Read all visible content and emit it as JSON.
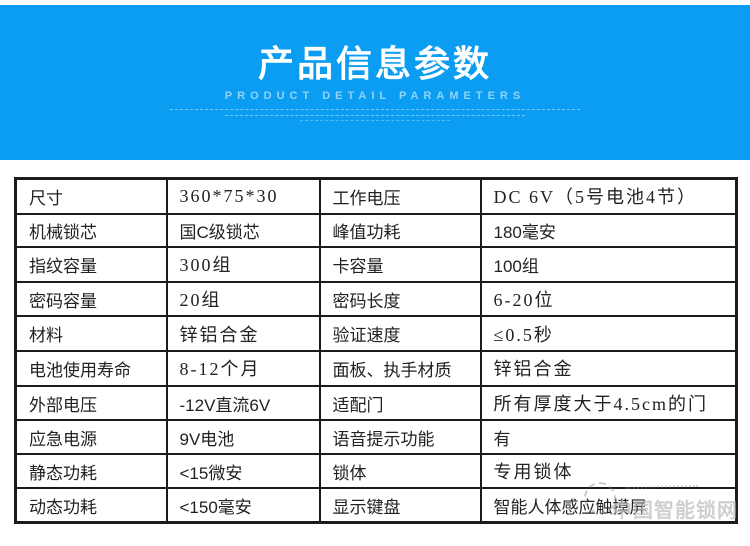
{
  "banner": {
    "title": "产品信息参数",
    "subtitle": "PRODUCT DETAIL PARAMETERS",
    "background_color": "#0b9df2"
  },
  "table": {
    "rows": [
      [
        {
          "text": "尺寸"
        },
        {
          "text": "360*75*30",
          "serif": true
        },
        {
          "text": "工作电压"
        },
        {
          "text": "DC 6V（5号电池4节）",
          "serif": true
        }
      ],
      [
        {
          "text": "机械锁芯"
        },
        {
          "text": "国C级锁芯",
          "serif": false
        },
        {
          "text": "峰值功耗"
        },
        {
          "text": "180毫安",
          "serif": false
        }
      ],
      [
        {
          "text": "指纹容量"
        },
        {
          "text": "300组",
          "serif": true
        },
        {
          "text": "卡容量"
        },
        {
          "text": "100组",
          "serif": false
        }
      ],
      [
        {
          "text": "密码容量"
        },
        {
          "text": "20组",
          "serif": true
        },
        {
          "text": "密码长度"
        },
        {
          "text": "6-20位",
          "serif": true
        }
      ],
      [
        {
          "text": "材料"
        },
        {
          "text": "锌铝合金",
          "serif": true
        },
        {
          "text": "验证速度"
        },
        {
          "text": "≤0.5秒",
          "serif": true
        }
      ],
      [
        {
          "text": "电池使用寿命"
        },
        {
          "text": "8-12个月",
          "serif": true
        },
        {
          "text": "面板、执手材质"
        },
        {
          "text": "锌铝合金",
          "serif": true
        }
      ],
      [
        {
          "text": "外部电压"
        },
        {
          "text": "-12V直流6V",
          "serif": false
        },
        {
          "text": "适配门"
        },
        {
          "text": "所有厚度大于4.5cm的门",
          "serif": true
        }
      ],
      [
        {
          "text": "应急电源"
        },
        {
          "text": "9V电池",
          "serif": false
        },
        {
          "text": "语音提示功能"
        },
        {
          "text": "有",
          "serif": false
        }
      ],
      [
        {
          "text": "静态功耗"
        },
        {
          "text": "<15微安",
          "serif": false
        },
        {
          "text": "锁体"
        },
        {
          "text": "专用锁体",
          "serif": true
        }
      ],
      [
        {
          "text": "动态功耗"
        },
        {
          "text": "<150毫安",
          "serif": false
        },
        {
          "text": "显示键盘"
        },
        {
          "text": "智能人体感应触摸屏",
          "serif": false
        }
      ]
    ]
  },
  "watermark": {
    "text": "中国智能锁网"
  }
}
